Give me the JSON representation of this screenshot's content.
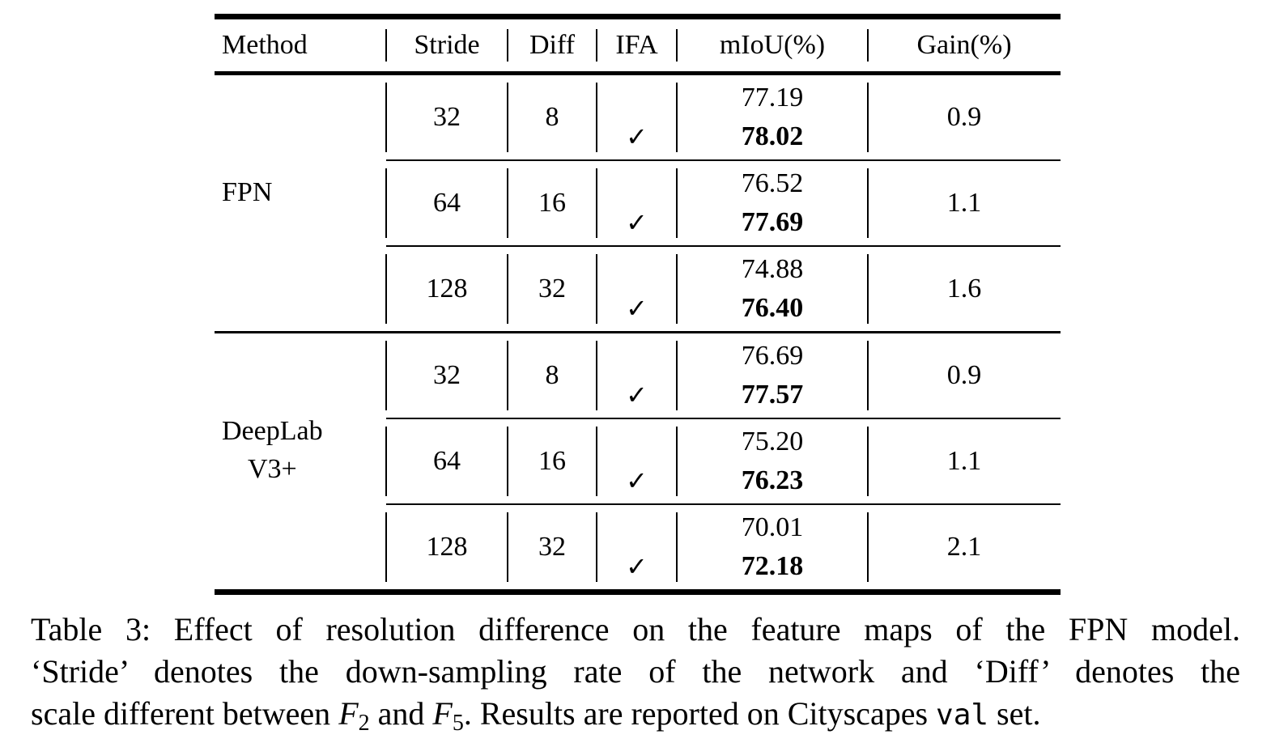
{
  "table": {
    "headers": [
      "Method",
      "Stride",
      "Diff",
      "IFA",
      "mIoU(%)",
      "Gain(%)"
    ],
    "groups": [
      {
        "method_lines": [
          "FPN"
        ],
        "rows": [
          {
            "stride": "32",
            "diff": "8",
            "ifa": "✓",
            "miou_base": "77.19",
            "miou_ifa": "78.02",
            "gain": "0.9"
          },
          {
            "stride": "64",
            "diff": "16",
            "ifa": "✓",
            "miou_base": "76.52",
            "miou_ifa": "77.69",
            "gain": "1.1"
          },
          {
            "stride": "128",
            "diff": "32",
            "ifa": "✓",
            "miou_base": "74.88",
            "miou_ifa": "76.40",
            "gain": "1.6"
          }
        ]
      },
      {
        "method_lines": [
          "DeepLab",
          "V3+"
        ],
        "rows": [
          {
            "stride": "32",
            "diff": "8",
            "ifa": "✓",
            "miou_base": "76.69",
            "miou_ifa": "77.57",
            "gain": "0.9"
          },
          {
            "stride": "64",
            "diff": "16",
            "ifa": "✓",
            "miou_base": "75.20",
            "miou_ifa": "76.23",
            "gain": "1.1"
          },
          {
            "stride": "128",
            "diff": "32",
            "ifa": "✓",
            "miou_base": "70.01",
            "miou_ifa": "72.18",
            "gain": "2.1"
          }
        ]
      }
    ]
  },
  "caption": {
    "line1": "Table 3: Effect of resolution difference on the feature maps of the FPN model.",
    "line2": "‘Stride’ denotes the down-sampling rate of the network and ‘Diff’ denotes the",
    "line3": {
      "seg1": "scale different between ",
      "f1": "F",
      "f1sub": "2",
      "seg2": " and ",
      "f2": "F",
      "f2sub": "5",
      "seg3": ". Results are reported on Cityscapes ",
      "mono": "val",
      "seg4": " set."
    }
  }
}
